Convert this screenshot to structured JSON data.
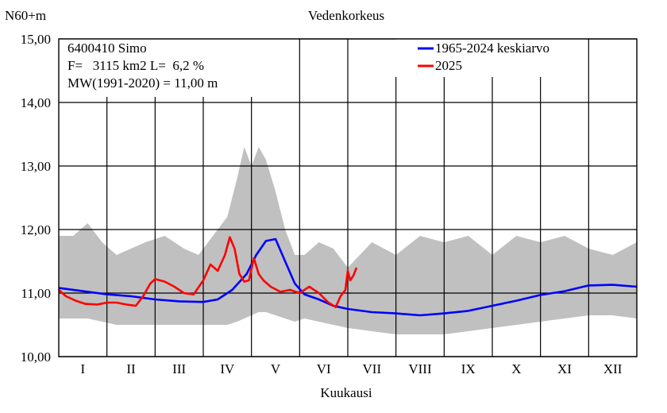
{
  "chart_data": {
    "type": "line",
    "title": "Vedenkorkeus",
    "ylabel": "N60+m",
    "xlabel": "Kuukausi",
    "ylim": [
      10.0,
      15.0
    ],
    "xlim": [
      0,
      12
    ],
    "yticks": [
      "10,00",
      "11,00",
      "12,00",
      "13,00",
      "14,00",
      "15,00"
    ],
    "ytick_values": [
      10,
      11,
      12,
      13,
      14,
      15
    ],
    "months": [
      "I",
      "II",
      "III",
      "IV",
      "V",
      "VI",
      "VII",
      "VIII",
      "IX",
      "X",
      "XI",
      "XII"
    ],
    "grid": true,
    "info_lines": [
      "6400410 Simo",
      "F=   3115 km2 L=  6,2 %",
      "MW(1991-2020) = 11,00 m"
    ],
    "legend_position": "top-right",
    "colors": {
      "mean": "#0000ff",
      "current": "#ff0000",
      "range": "#c0c0c0"
    },
    "range_band": {
      "x": [
        0,
        0.3,
        0.6,
        0.9,
        1.2,
        1.5,
        1.8,
        2.2,
        2.6,
        2.9,
        3.2,
        3.5,
        3.7,
        3.85,
        4.0,
        4.15,
        4.3,
        4.5,
        4.7,
        4.9,
        5.1,
        5.4,
        5.7,
        6.0,
        6.5,
        7.0,
        7.5,
        8.0,
        8.5,
        9.0,
        9.5,
        10.0,
        10.5,
        11.0,
        11.5,
        12.0
      ],
      "upper": [
        11.9,
        11.9,
        12.1,
        11.8,
        11.6,
        11.7,
        11.8,
        11.9,
        11.7,
        11.6,
        11.9,
        12.2,
        12.8,
        13.3,
        13.0,
        13.3,
        13.1,
        12.6,
        12.0,
        11.6,
        11.6,
        11.8,
        11.7,
        11.4,
        11.8,
        11.6,
        11.9,
        11.8,
        11.9,
        11.6,
        11.9,
        11.8,
        11.9,
        11.7,
        11.6,
        11.8
      ],
      "lower": [
        10.6,
        10.6,
        10.6,
        10.55,
        10.5,
        10.5,
        10.5,
        10.5,
        10.5,
        10.5,
        10.5,
        10.5,
        10.55,
        10.6,
        10.65,
        10.7,
        10.7,
        10.65,
        10.6,
        10.55,
        10.6,
        10.55,
        10.5,
        10.45,
        10.4,
        10.35,
        10.35,
        10.35,
        10.4,
        10.45,
        10.5,
        10.55,
        10.6,
        10.65,
        10.65,
        10.6
      ]
    },
    "series": [
      {
        "name": "1965-2024 keskiarvo",
        "x": [
          0,
          0.5,
          1.0,
          1.5,
          2.0,
          2.5,
          3.0,
          3.3,
          3.6,
          3.9,
          4.1,
          4.3,
          4.5,
          4.7,
          4.9,
          5.1,
          5.4,
          5.7,
          6.0,
          6.5,
          7.0,
          7.5,
          8.0,
          8.5,
          9.0,
          9.5,
          10.0,
          10.5,
          11.0,
          11.5,
          12.0
        ],
        "values": [
          11.08,
          11.03,
          10.98,
          10.95,
          10.9,
          10.87,
          10.86,
          10.9,
          11.05,
          11.3,
          11.6,
          11.82,
          11.85,
          11.5,
          11.15,
          10.98,
          10.9,
          10.8,
          10.75,
          10.7,
          10.68,
          10.65,
          10.68,
          10.72,
          10.8,
          10.88,
          10.97,
          11.03,
          11.12,
          11.13,
          11.1
        ]
      },
      {
        "name": "2025",
        "x": [
          0,
          0.15,
          0.35,
          0.55,
          0.8,
          1.0,
          1.2,
          1.4,
          1.6,
          1.75,
          1.9,
          2.0,
          2.2,
          2.4,
          2.6,
          2.8,
          3.0,
          3.15,
          3.3,
          3.45,
          3.55,
          3.65,
          3.75,
          3.85,
          3.95,
          4.05,
          4.15,
          4.25,
          4.4,
          4.6,
          4.8,
          5.0,
          5.2,
          5.4,
          5.6,
          5.75,
          5.85,
          5.95,
          6.0,
          6.05,
          6.12,
          6.18
        ],
        "values": [
          11.05,
          10.95,
          10.88,
          10.83,
          10.82,
          10.85,
          10.85,
          10.82,
          10.8,
          10.95,
          11.15,
          11.22,
          11.18,
          11.1,
          11.0,
          10.98,
          11.2,
          11.45,
          11.35,
          11.6,
          11.88,
          11.7,
          11.3,
          11.18,
          11.2,
          11.55,
          11.3,
          11.2,
          11.1,
          11.02,
          11.05,
          11.0,
          11.1,
          11.0,
          10.85,
          10.78,
          10.95,
          11.05,
          11.35,
          11.2,
          11.28,
          11.4
        ]
      }
    ]
  }
}
